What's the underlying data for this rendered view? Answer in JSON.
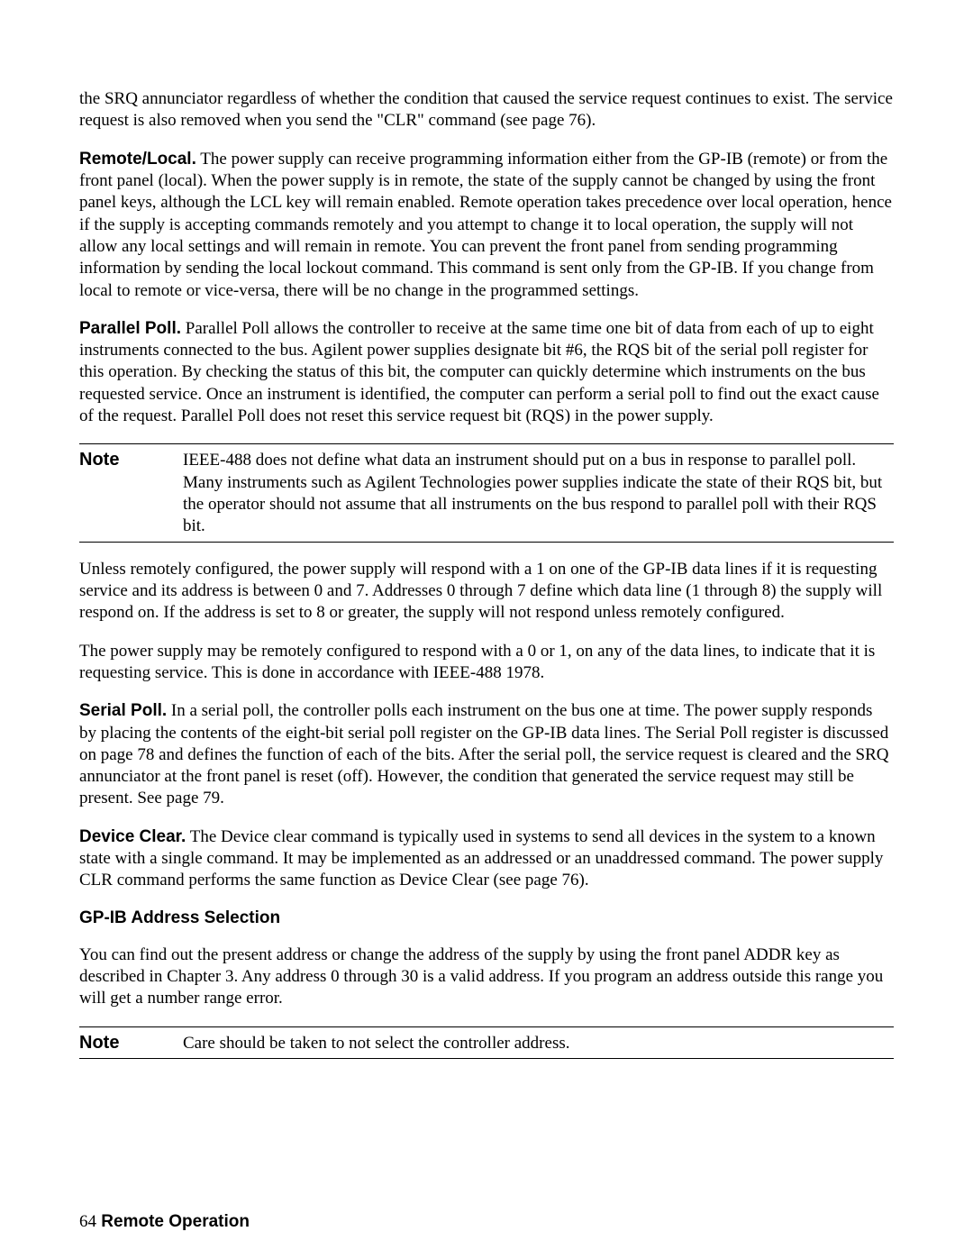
{
  "p_intro": "the SRQ annunciator regardless of whether the condition that caused the service request continues to exist. The service request is also removed when you send the \"CLR\" command (see page 76).",
  "remote_local": {
    "lead": "Remote/Local.",
    "body": " The power supply can receive programming information either from the GP-IB (remote) or from the front panel (local). When the power supply is in remote, the state of the supply cannot be changed by using the front panel keys, although the LCL key will remain enabled. Remote operation takes precedence over local operation, hence if the supply is accepting commands remotely and you attempt to change it to local operation, the supply will not allow any local settings and will remain in remote. You can prevent the front panel from sending programming information by sending the local lockout command. This command is sent only from the GP-IB. If you change from local to remote or vice-versa, there will be no change in the programmed settings."
  },
  "parallel_poll": {
    "lead": "Parallel Poll.",
    "body": " Parallel Poll allows the controller to receive at the same time one bit of data from each of up to eight instruments connected to the bus. Agilent power supplies designate bit #6, the RQS bit of the serial poll register for this operation. By checking the status of this bit, the computer can quickly determine which instruments on the bus requested service. Once an instrument is identified, the computer can perform a serial poll to find out the exact cause of the request. Parallel Poll does not reset this service request bit (RQS) in the power supply."
  },
  "note1": {
    "label": "Note",
    "text": "IEEE-488 does not define what data an instrument should put on a bus in response to parallel poll. Many instruments such as Agilent Technologies power supplies indicate the state of their RQS bit, but the operator should not assume that all instruments on the bus respond to parallel poll with their RQS bit."
  },
  "p_unless": "Unless remotely configured, the power supply will respond with a 1 on one of the GP-IB data lines if it is requesting service and its address is between 0 and 7. Addresses 0 through 7 define which data line (1 through 8) the supply will respond on. If the address is set to 8 or greater, the supply will not respond unless remotely configured.",
  "p_remote_config": "The power supply may be remotely configured to respond with a 0 or 1, on any of the data lines, to indicate that it is requesting service. This is done in accordance with IEEE-488 1978.",
  "serial_poll": {
    "lead": "Serial Poll.",
    "body": " In a serial poll, the controller polls each instrument on the bus one at time. The power supply responds by placing the contents of the eight-bit serial poll register on the GP-IB data lines. The Serial Poll register is discussed on page 78 and defines the function of each of the bits. After the serial poll, the service request is cleared and the SRQ annunciator at the front panel is reset (off). However, the condition that generated the service request may still be present. See page 79."
  },
  "device_clear": {
    "lead": "Device Clear.",
    "body": " The Device clear command is typically used in systems to send all devices in the system to a known state with a single command. It may be implemented as an addressed or an unaddressed command. The power supply CLR command performs the same function as Device Clear (see page 76)."
  },
  "subhead": "GP-IB Address Selection",
  "p_addr": "You can find out the present address or change the address of the supply by using the front panel ADDR key as described in Chapter 3.  Any address 0 through 30 is a valid address. If you program an address outside this range you will get a number range error.",
  "note2": {
    "label": "Note",
    "text": "Care should be taken to not select the controller address."
  },
  "footer": {
    "page": "64",
    "title": "  Remote Operation"
  }
}
